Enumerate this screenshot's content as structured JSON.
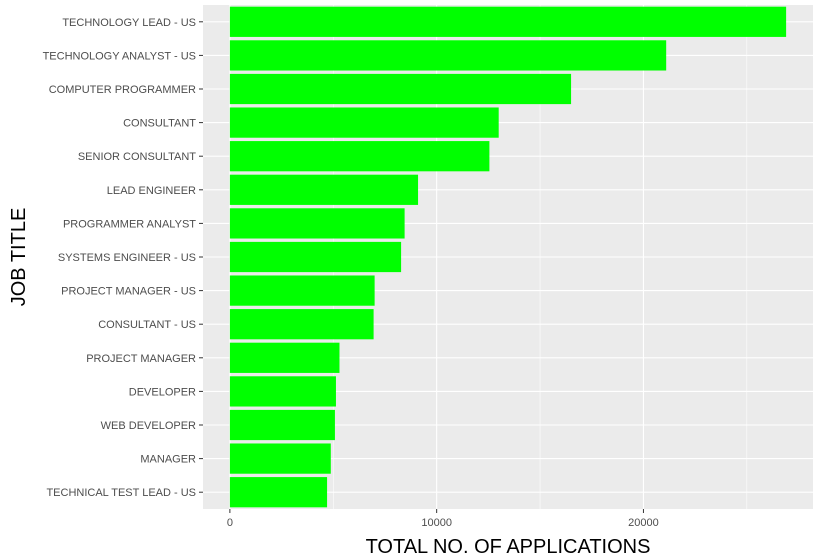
{
  "chart_data": {
    "type": "bar",
    "orientation": "horizontal",
    "title": "",
    "xlabel": "TOTAL NO. OF APPLICATIONS",
    "ylabel": "JOB TITLE",
    "categories": [
      "TECHNOLOGY LEAD - US",
      "TECHNOLOGY ANALYST - US",
      "COMPUTER PROGRAMMER",
      "CONSULTANT",
      "SENIOR CONSULTANT",
      "LEAD ENGINEER",
      "PROGRAMMER ANALYST",
      "SYSTEMS ENGINEER - US",
      "PROJECT MANAGER - US",
      "CONSULTANT - US",
      "PROJECT MANAGER",
      "DEVELOPER",
      "WEB DEVELOPER",
      "MANAGER",
      "TECHNICAL TEST LEAD - US"
    ],
    "values": [
      26900,
      21100,
      16500,
      13000,
      12550,
      9100,
      8450,
      8280,
      7000,
      6950,
      5300,
      5130,
      5080,
      4880,
      4700
    ],
    "xlim": [
      -1300,
      28200
    ],
    "xticks": [
      0,
      10000,
      20000
    ],
    "grid": true,
    "legend": "none",
    "colors": {
      "bar": "#00ff00",
      "panel": "#ebebeb",
      "grid_major": "#ffffff",
      "tick_label": "#4d4d4d"
    }
  }
}
